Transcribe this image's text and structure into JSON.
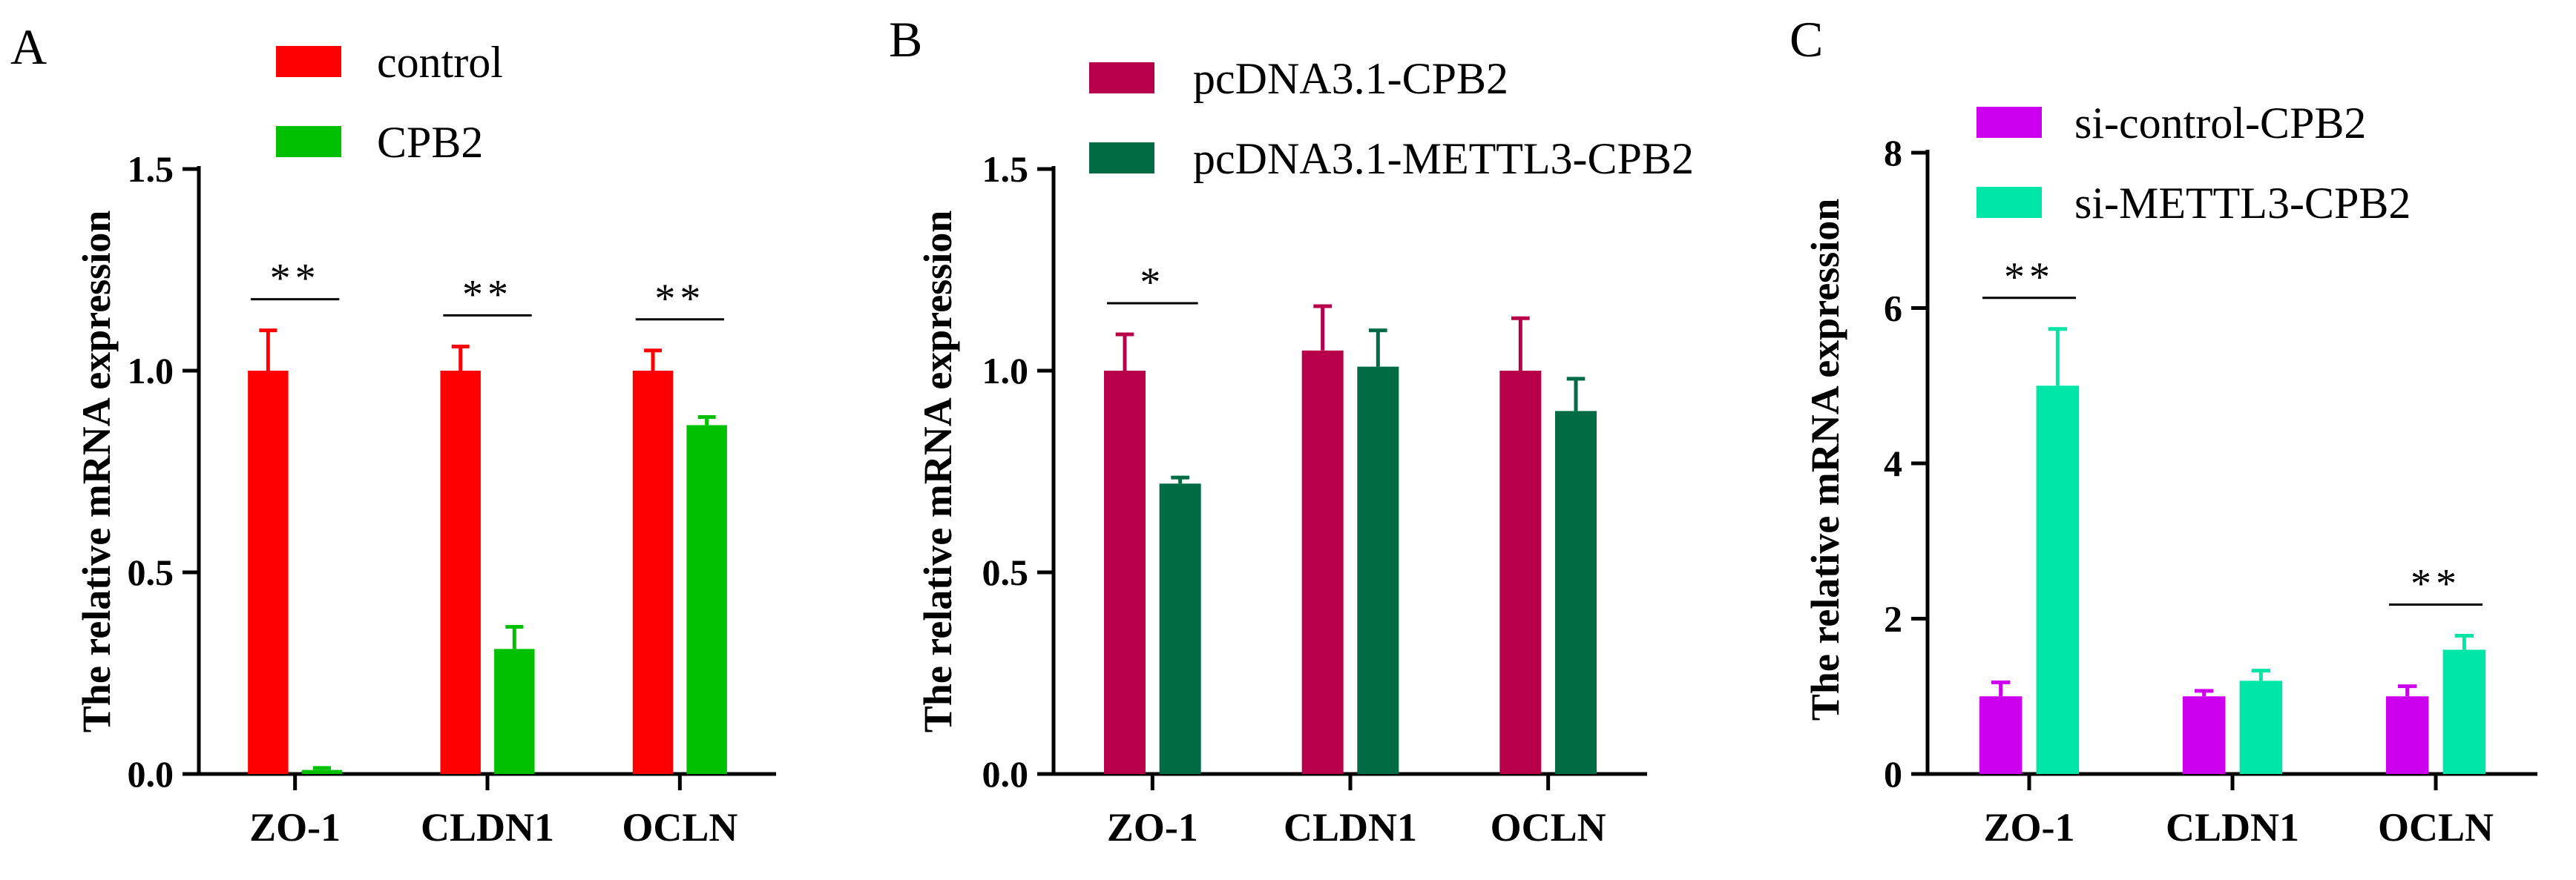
{
  "chart_data": [
    {
      "panel": "A",
      "type": "bar",
      "categories": [
        "ZO-1",
        "CLDN1",
        "OCLN"
      ],
      "series": [
        {
          "name": "control",
          "color": "#ff0000",
          "values": [
            1.0,
            1.0,
            1.0
          ],
          "errors": [
            0.1,
            0.06,
            0.05
          ]
        },
        {
          "name": "CPB2",
          "color": "#00c000",
          "values": [
            0.01,
            0.31,
            0.865
          ],
          "errors": [
            0.005,
            0.055,
            0.02
          ]
        }
      ],
      "ylabel": "The relative mRNA expression",
      "ylim": [
        0,
        1.5
      ],
      "yticks": [
        0.0,
        0.5,
        1.0,
        1.5
      ],
      "ytick_labels": [
        "0.0",
        "0.5",
        "1.0",
        "1.5"
      ],
      "significance": [
        {
          "category": "ZO-1",
          "label": "**"
        },
        {
          "category": "CLDN1",
          "label": "**"
        },
        {
          "category": "OCLN",
          "label": "**"
        }
      ]
    },
    {
      "panel": "B",
      "type": "bar",
      "categories": [
        "ZO-1",
        "CLDN1",
        "OCLN"
      ],
      "series": [
        {
          "name": "pcDNA3.1-CPB2",
          "color": "#b8004a",
          "values": [
            1.0,
            1.05,
            1.0
          ],
          "errors": [
            0.09,
            0.11,
            0.13
          ]
        },
        {
          "name": "pcDNA3.1-METTL3-CPB2",
          "color": "#006b45",
          "values": [
            0.72,
            1.01,
            0.9
          ],
          "errors": [
            0.015,
            0.09,
            0.08
          ]
        }
      ],
      "ylabel": "The relative mRNA expression",
      "ylim": [
        0,
        1.5
      ],
      "yticks": [
        0.0,
        0.5,
        1.0,
        1.5
      ],
      "ytick_labels": [
        "0.0",
        "0.5",
        "1.0",
        "1.5"
      ],
      "significance": [
        {
          "category": "ZO-1",
          "label": "*"
        }
      ]
    },
    {
      "panel": "C",
      "type": "bar",
      "categories": [
        "ZO-1",
        "CLDN1",
        "OCLN"
      ],
      "series": [
        {
          "name": "si-control-CPB2",
          "color": "#cc00ee",
          "values": [
            1.0,
            1.0,
            1.0
          ],
          "errors": [
            0.18,
            0.07,
            0.13
          ]
        },
        {
          "name": "si-METTL3-CPB2",
          "color": "#00e6a8",
          "values": [
            5.0,
            1.2,
            1.6
          ],
          "errors": [
            0.73,
            0.13,
            0.18
          ]
        }
      ],
      "ylabel": "The relative mRNA expression",
      "ylim": [
        0,
        8
      ],
      "yticks": [
        0,
        2,
        4,
        6,
        8
      ],
      "ytick_labels": [
        "0",
        "2",
        "4",
        "6",
        "8"
      ],
      "significance": [
        {
          "category": "ZO-1",
          "label": "**"
        },
        {
          "category": "OCLN",
          "label": "**"
        }
      ]
    }
  ]
}
